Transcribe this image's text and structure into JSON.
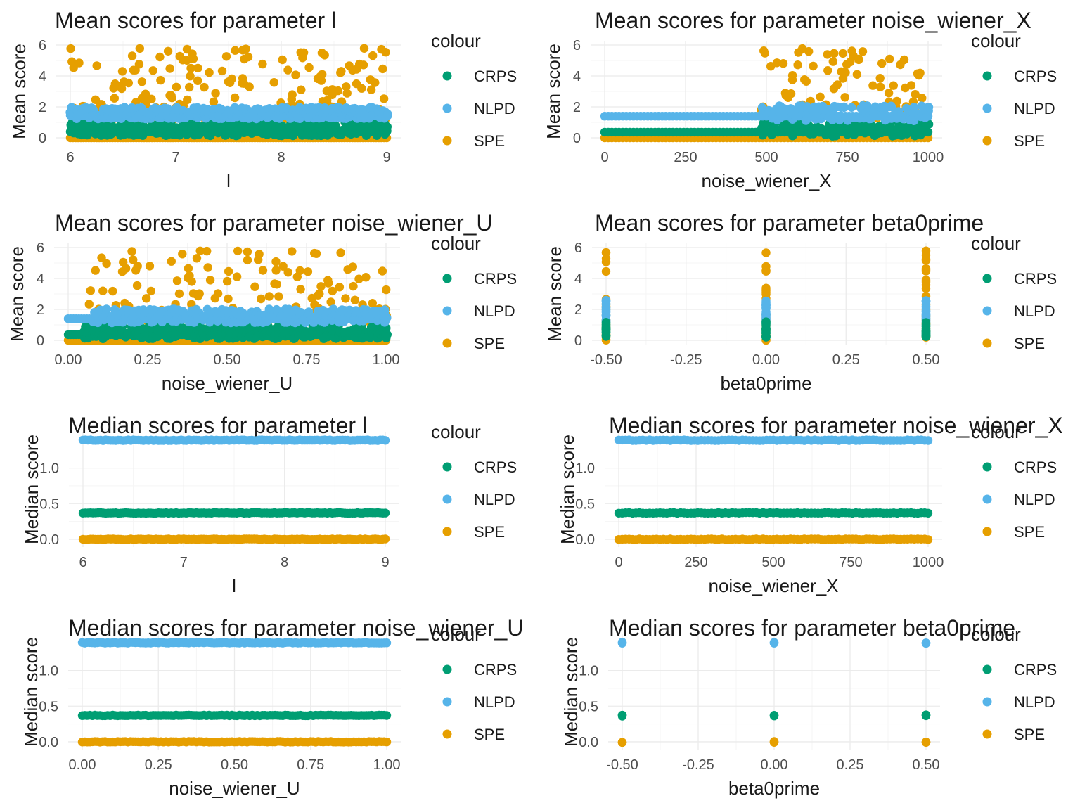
{
  "legend": {
    "title": "colour",
    "entries": [
      "CRPS",
      "NLPD",
      "SPE"
    ]
  },
  "colors": {
    "CRPS": "#009E73",
    "NLPD": "#56B4E9",
    "SPE": "#E69F00",
    "grid_major": "#EBEBEB",
    "grid_minor": "#F5F5F5",
    "text": "#1A1A1A",
    "tick_text": "#4D4D4D"
  },
  "chart_data": [
    {
      "type": "scatter",
      "title": "Mean scores for parameter l",
      "xlabel": "l",
      "ylabel": "Mean score",
      "xlim": [
        6,
        9
      ],
      "ylim": [
        0,
        6
      ],
      "xticks": [
        6,
        7,
        8,
        9
      ],
      "xtick_labels": [
        "6",
        "7",
        "8",
        "9"
      ],
      "yticks": [
        0,
        2,
        4,
        6
      ],
      "ytick_labels": [
        "0",
        "2",
        "4",
        "6"
      ],
      "x_values": "continuous",
      "series": [
        {
          "name": "SPE",
          "base": 0.0,
          "spread": 0.05,
          "outlier_min": 1.2,
          "outlier_max": 5.8
        },
        {
          "name": "CRPS",
          "base": 0.4,
          "spread": 0.9
        },
        {
          "name": "NLPD",
          "base": 1.45,
          "spread": 0.75
        }
      ],
      "legend": "right",
      "grid": true
    },
    {
      "type": "scatter",
      "title": "Mean scores for parameter noise_wiener_X",
      "xlabel": "noise_wiener_X",
      "ylabel": "Mean score",
      "xlim": [
        0,
        1000
      ],
      "ylim": [
        0,
        6
      ],
      "xticks": [
        0,
        250,
        500,
        750,
        1000
      ],
      "xtick_labels": [
        "0",
        "250",
        "500",
        "750",
        "1000"
      ],
      "yticks": [
        0,
        2,
        4,
        6
      ],
      "ytick_labels": [
        "0",
        "2",
        "4",
        "6"
      ],
      "x_values": "grid",
      "series": [
        {
          "name": "SPE",
          "base": 0.0,
          "spread": 0.05,
          "outlier_min": 1.2,
          "outlier_max": 5.8,
          "outlier_from": 480
        },
        {
          "name": "CRPS",
          "base": 0.37,
          "spread": 0.9,
          "spread_from": 480
        },
        {
          "name": "NLPD",
          "base": 1.4,
          "spread": 1.0,
          "spread_from": 480
        }
      ],
      "legend": "right",
      "grid": true
    },
    {
      "type": "scatter",
      "title": "Mean scores for parameter noise_wiener_U",
      "xlabel": "noise_wiener_U",
      "ylabel": "Mean score",
      "xlim": [
        0,
        1
      ],
      "ylim": [
        0,
        6
      ],
      "xticks": [
        0,
        0.25,
        0.5,
        0.75,
        1
      ],
      "xtick_labels": [
        "0.00",
        "0.25",
        "0.50",
        "0.75",
        "1.00"
      ],
      "yticks": [
        0,
        2,
        4,
        6
      ],
      "ytick_labels": [
        "0",
        "2",
        "4",
        "6"
      ],
      "x_values": "continuous",
      "series": [
        {
          "name": "SPE",
          "base": 0.0,
          "spread": 0.05,
          "outlier_min": 1.2,
          "outlier_max": 5.8,
          "outlier_from": 0.05
        },
        {
          "name": "CRPS",
          "base": 0.37,
          "spread": 0.9,
          "spread_from": 0.05
        },
        {
          "name": "NLPD",
          "base": 1.4,
          "spread": 0.9,
          "spread_from": 0.08
        }
      ],
      "legend": "right",
      "grid": true
    },
    {
      "type": "scatter",
      "title": "Mean scores for parameter beta0prime",
      "xlabel": "beta0prime",
      "ylabel": "Mean score",
      "xlim": [
        -0.5,
        0.5
      ],
      "ylim": [
        0,
        6
      ],
      "xticks": [
        -0.5,
        -0.25,
        0,
        0.25,
        0.5
      ],
      "xtick_labels": [
        "-0.50",
        "-0.25",
        "0.00",
        "0.25",
        "0.50"
      ],
      "yticks": [
        0,
        2,
        4,
        6
      ],
      "ytick_labels": [
        "0",
        "2",
        "4",
        "6"
      ],
      "x_values": "discrete",
      "discrete_x": [
        -0.5,
        0,
        0.5
      ],
      "series": [
        {
          "name": "SPE",
          "min": 0.0,
          "max": 5.8
        },
        {
          "name": "NLPD",
          "min": 1.2,
          "max": 2.6
        },
        {
          "name": "CRPS",
          "min": 0.2,
          "max": 1.2
        }
      ],
      "legend": "right",
      "grid": true
    },
    {
      "type": "scatter",
      "title": "Median scores for parameter l",
      "xlabel": "l",
      "ylabel": "Median score",
      "xlim": [
        6,
        9
      ],
      "ylim": [
        -0.05,
        1.45
      ],
      "xticks": [
        6,
        7,
        8,
        9
      ],
      "xtick_labels": [
        "6",
        "7",
        "8",
        "9"
      ],
      "yticks": [
        0,
        0.5,
        1
      ],
      "ytick_labels": [
        "0.0",
        "0.5",
        "1.0"
      ],
      "x_values": "continuous",
      "series": [
        {
          "name": "NLPD",
          "value": 1.39
        },
        {
          "name": "CRPS",
          "value": 0.37
        },
        {
          "name": "SPE",
          "value": 0.0
        }
      ],
      "legend": "right",
      "grid": true
    },
    {
      "type": "scatter",
      "title": "Median scores for parameter noise_wiener_X",
      "xlabel": "noise_wiener_X",
      "ylabel": "Median score",
      "xlim": [
        0,
        1000
      ],
      "ylim": [
        -0.05,
        1.45
      ],
      "xticks": [
        0,
        250,
        500,
        750,
        1000
      ],
      "xtick_labels": [
        "0",
        "250",
        "500",
        "750",
        "1000"
      ],
      "yticks": [
        0,
        0.5,
        1
      ],
      "ytick_labels": [
        "0.0",
        "0.5",
        "1.0"
      ],
      "x_values": "grid",
      "series": [
        {
          "name": "NLPD",
          "value": 1.39
        },
        {
          "name": "CRPS",
          "value": 0.37
        },
        {
          "name": "SPE",
          "value": 0.0
        }
      ],
      "legend": "right",
      "grid": true
    },
    {
      "type": "scatter",
      "title": "Median scores for parameter noise_wiener_U",
      "xlabel": "noise_wiener_U",
      "ylabel": "Median score",
      "xlim": [
        0,
        1
      ],
      "ylim": [
        -0.05,
        1.45
      ],
      "xticks": [
        0,
        0.25,
        0.5,
        0.75,
        1
      ],
      "xtick_labels": [
        "0.00",
        "0.25",
        "0.50",
        "0.75",
        "1.00"
      ],
      "yticks": [
        0,
        0.5,
        1
      ],
      "ytick_labels": [
        "0.0",
        "0.5",
        "1.0"
      ],
      "x_values": "continuous",
      "series": [
        {
          "name": "NLPD",
          "value": 1.39
        },
        {
          "name": "CRPS",
          "value": 0.37
        },
        {
          "name": "SPE",
          "value": 0.0
        }
      ],
      "legend": "right",
      "grid": true
    },
    {
      "type": "scatter",
      "title": "Median scores for parameter beta0prime",
      "xlabel": "beta0prime",
      "ylabel": "Median score",
      "xlim": [
        -0.5,
        0.5
      ],
      "ylim": [
        -0.05,
        1.45
      ],
      "xticks": [
        -0.5,
        -0.25,
        0,
        0.25,
        0.5
      ],
      "xtick_labels": [
        "-0.50",
        "-0.25",
        "0.00",
        "0.25",
        "0.50"
      ],
      "yticks": [
        0,
        0.5,
        1
      ],
      "ytick_labels": [
        "0.0",
        "0.5",
        "1.0"
      ],
      "x_values": "discrete",
      "discrete_x": [
        -0.5,
        0,
        0.5
      ],
      "series": [
        {
          "name": "NLPD",
          "value": 1.39
        },
        {
          "name": "CRPS",
          "value": 0.37
        },
        {
          "name": "SPE",
          "value": 0.0
        }
      ],
      "legend": "right",
      "grid": true
    }
  ]
}
